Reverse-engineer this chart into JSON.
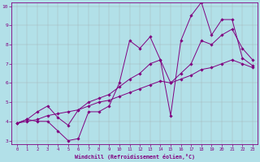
{
  "xlabel": "Windchill (Refroidissement éolien,°C)",
  "bg_color": "#b2e0e8",
  "line_color": "#800080",
  "grid_color": "#a0a0a0",
  "xlim": [
    -0.5,
    23.5
  ],
  "ylim": [
    2.8,
    10.2
  ],
  "xticks": [
    0,
    1,
    2,
    3,
    4,
    5,
    6,
    7,
    8,
    9,
    10,
    11,
    12,
    13,
    14,
    15,
    16,
    17,
    18,
    19,
    20,
    21,
    22,
    23
  ],
  "yticks": [
    3,
    4,
    5,
    6,
    7,
    8,
    9,
    10
  ],
  "series1_x": [
    0,
    1,
    2,
    3,
    4,
    5,
    6,
    7,
    8,
    9,
    10,
    11,
    12,
    13,
    14,
    15,
    16,
    17,
    18,
    19,
    20,
    21,
    22,
    23
  ],
  "series1_y": [
    3.9,
    4.1,
    4.0,
    4.0,
    3.5,
    3.0,
    3.1,
    4.5,
    4.5,
    4.8,
    6.0,
    8.2,
    7.8,
    8.4,
    7.2,
    4.3,
    8.2,
    9.5,
    10.2,
    8.5,
    9.3,
    9.3,
    7.3,
    6.9
  ],
  "series2_x": [
    0,
    1,
    2,
    3,
    4,
    5,
    6,
    7,
    8,
    9,
    10,
    11,
    12,
    13,
    14,
    15,
    16,
    17,
    18,
    19,
    20,
    21,
    22,
    23
  ],
  "series2_y": [
    3.9,
    4.1,
    4.5,
    4.8,
    4.2,
    3.8,
    4.6,
    5.0,
    5.2,
    5.4,
    5.8,
    6.2,
    6.5,
    7.0,
    7.2,
    6.0,
    6.5,
    7.0,
    8.2,
    8.0,
    8.5,
    8.8,
    7.8,
    7.2
  ],
  "series3_x": [
    0,
    1,
    2,
    3,
    4,
    5,
    6,
    7,
    8,
    9,
    10,
    11,
    12,
    13,
    14,
    15,
    16,
    17,
    18,
    19,
    20,
    21,
    22,
    23
  ],
  "series3_y": [
    3.9,
    4.0,
    4.1,
    4.3,
    4.4,
    4.5,
    4.6,
    4.8,
    5.0,
    5.1,
    5.3,
    5.5,
    5.7,
    5.9,
    6.1,
    6.0,
    6.2,
    6.4,
    6.7,
    6.8,
    7.0,
    7.2,
    7.0,
    6.8
  ]
}
